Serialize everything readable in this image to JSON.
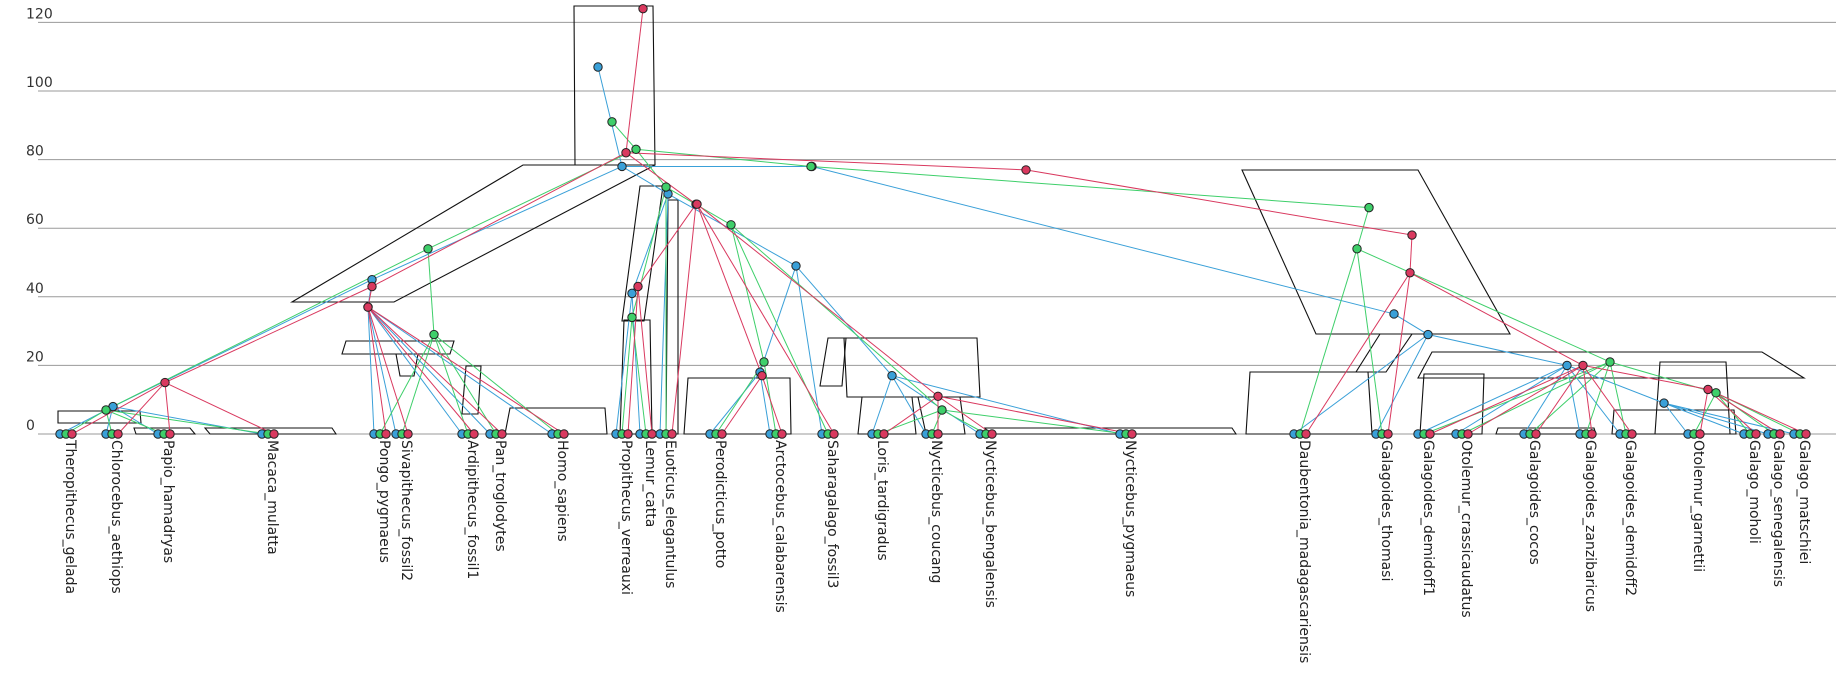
{
  "chart_data": {
    "type": "densitree",
    "title": "",
    "xlabel": "",
    "ylabel": "",
    "ylim": [
      0,
      125
    ],
    "yticks": [
      0,
      20,
      40,
      60,
      80,
      100,
      120
    ],
    "grid": true,
    "series": [
      {
        "key": "blue",
        "color": "#3aa0d8"
      },
      {
        "key": "green",
        "color": "#3ecf6a"
      },
      {
        "key": "red",
        "color": "#d9395f"
      }
    ],
    "taxa": [
      "Theropithecus_gelada",
      "Chlorocebus_aethiops",
      "Papio_hamadryas",
      "Macaca_mulatta",
      "Pongo_pygmaeus",
      "Sivapithecus_fossil2",
      "Ardipithecus_fossil1",
      "Pan_troglodytes",
      "Homo_sapiens",
      "Propithecus_verreauxi",
      "Lemur_catta",
      "Euoticus_elegantulus",
      "Perodicticus_potto",
      "Arctocebus_calabarensis",
      "Saharagalago_fossil3",
      "Loris_tardigradus",
      "Nycticebus_coucang",
      "Nycticebus_bengalensis",
      "Nycticebus_pygmaeus",
      "Daubentonia_madagascariensis",
      "Galagoides_thomasi",
      "Galagoides_demidoff1",
      "Otolemur_crassicaudatus",
      "Galagoides_cocos",
      "Galagoides_zanzibaricus",
      "Galagoides_demidoff2",
      "Otolemur_garnettii",
      "Galago_moholi",
      "Galago_senegalensis",
      "Galago_matschiei"
    ],
    "clades": [
      {
        "name": "root",
        "trees": {
          "blue": {
            "time": 107,
            "x": 598
          },
          "green": {
            "time": 91,
            "x": 612
          },
          "red": {
            "time": 124,
            "x": 643
          }
        }
      },
      {
        "name": "anthropoid_lorisiform_split",
        "trees": {
          "blue": {
            "time": 78,
            "x": 622
          },
          "green": {
            "time": 83,
            "x": 636
          },
          "red": {
            "time": 82,
            "x": 626
          }
        }
      },
      {
        "name": "haplorhini",
        "trees": {
          "blue": {
            "time": 45,
            "x": 372
          },
          "green": {
            "time": 54,
            "x": 428
          },
          "red": {
            "time": 43,
            "x": 372
          }
        }
      },
      {
        "name": "catarrhini",
        "trees": {
          "blue": {
            "time": 8,
            "x": 113
          },
          "green": {
            "time": 7,
            "x": 106
          },
          "red": {
            "time": 15,
            "x": 165
          }
        }
      },
      {
        "name": "hominoidea",
        "trees": {
          "blue": {
            "time": 37,
            "x": 368
          },
          "green": {
            "time": 29,
            "x": 434
          },
          "red": {
            "time": 37,
            "x": 368
          }
        }
      },
      {
        "name": "strepsirrhini",
        "trees": {
          "blue": {
            "time": 70,
            "x": 668
          },
          "green": {
            "time": 72,
            "x": 666
          },
          "red": {
            "time": 67,
            "x": 696
          }
        }
      },
      {
        "name": "lemuriformes",
        "trees": {
          "blue": {
            "time": 41,
            "x": 632
          },
          "green": {
            "time": 34,
            "x": 632
          },
          "red": {
            "time": 43,
            "x": 638
          }
        }
      },
      {
        "name": "lorisidae",
        "trees": {
          "blue": {
            "time": 49,
            "x": 796
          },
          "green": {
            "time": 61,
            "x": 731
          },
          "red": {
            "time": 67,
            "x": 697
          }
        }
      },
      {
        "name": "potto_group",
        "trees": {
          "blue": {
            "time": 18,
            "x": 760
          },
          "green": {
            "time": 21,
            "x": 764
          },
          "red": {
            "time": 17,
            "x": 762
          }
        }
      },
      {
        "name": "loris_group",
        "trees": {
          "blue": {
            "time": 17,
            "x": 892
          },
          "green": {
            "time": 7,
            "x": 942
          },
          "red": {
            "time": 11,
            "x": 938
          }
        }
      },
      {
        "name": "galagidae_root",
        "trees": {
          "blue": {
            "time": 78,
            "x": 812
          },
          "green": {
            "time": 78,
            "x": 811
          },
          "red": {
            "time": 77,
            "x": 1026
          }
        }
      },
      {
        "name": "galagidae",
        "trees": {
          "blue": {
            "time": 35,
            "x": 1394
          },
          "green": {
            "time": 66,
            "x": 1369
          },
          "red": {
            "time": 58,
            "x": 1412
          }
        }
      },
      {
        "name": "galagidae_inner",
        "trees": {
          "blue": {
            "time": 29,
            "x": 1428
          },
          "green": {
            "time": 54,
            "x": 1357
          },
          "red": {
            "time": 47,
            "x": 1410
          }
        }
      },
      {
        "name": "galago_crown",
        "trees": {
          "blue": {
            "time": 20,
            "x": 1567
          },
          "green": {
            "time": 21,
            "x": 1610
          },
          "red": {
            "time": 20,
            "x": 1583
          }
        }
      },
      {
        "name": "galago_moholi_group",
        "trees": {
          "blue": {
            "time": 9,
            "x": 1664
          },
          "green": {
            "time": 12,
            "x": 1716
          },
          "red": {
            "time": 13,
            "x": 1708
          }
        }
      }
    ]
  }
}
